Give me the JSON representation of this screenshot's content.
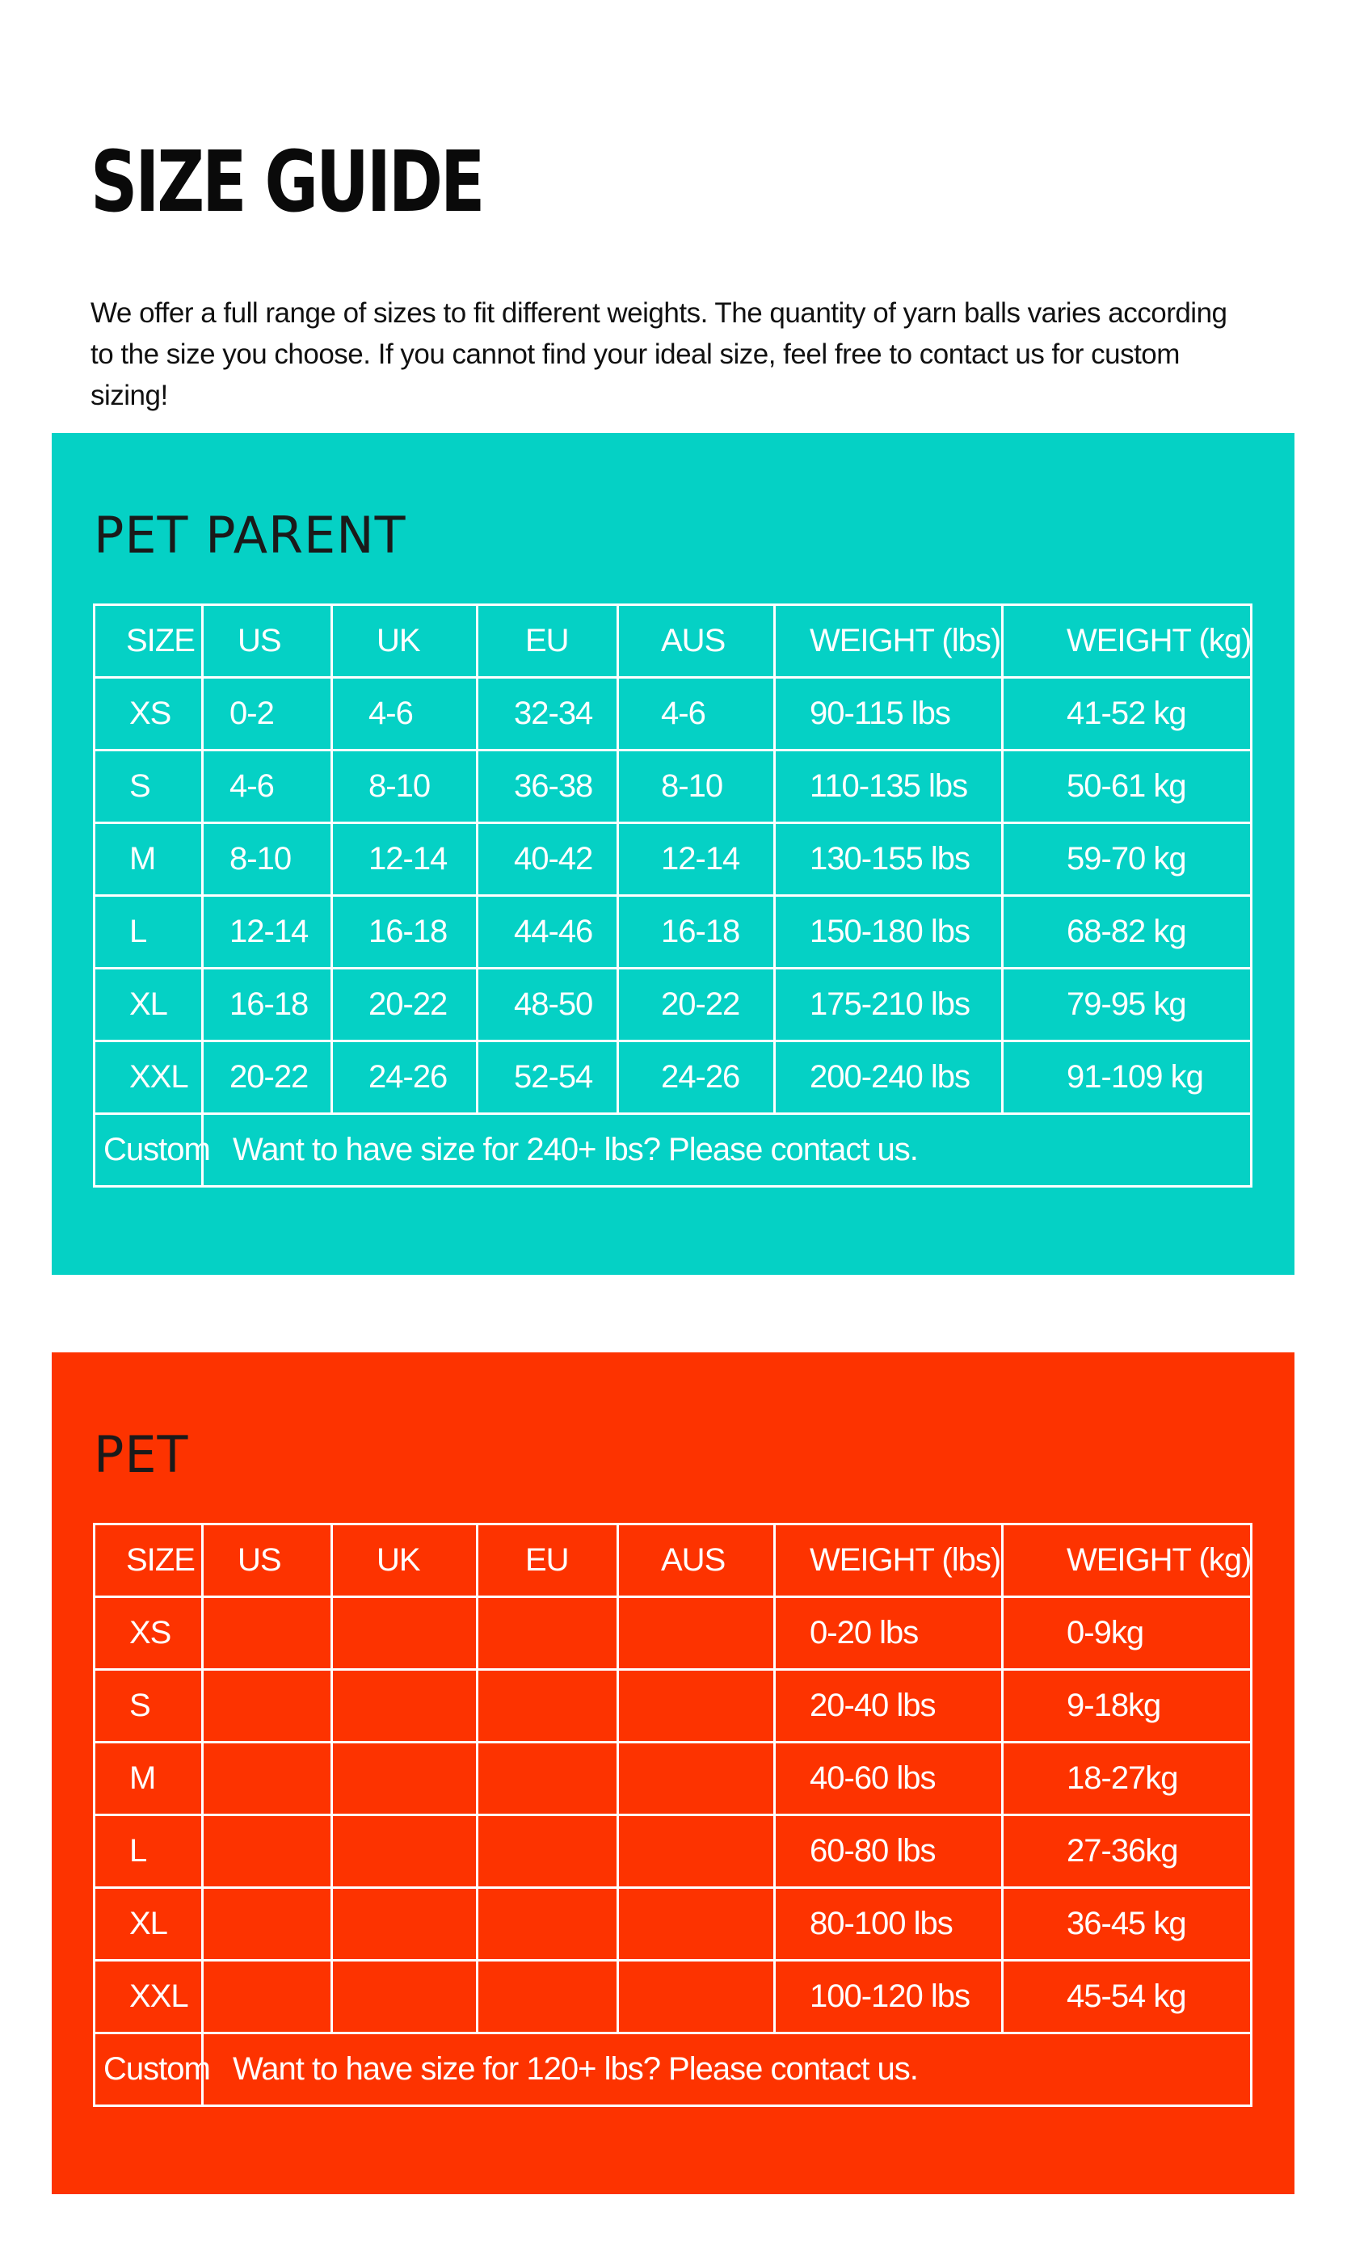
{
  "title": "SIZE GUIDE",
  "intro": "We offer a full range of sizes to fit different weights. The quantity of yarn balls varies according to the size you choose. If you cannot find your ideal size, feel free to contact us for custom sizing!",
  "colors": {
    "pet_parent_bg": "#05d1c5",
    "pet_bg": "#fd3300",
    "grid_lines": "#ffffff"
  },
  "tables": [
    {
      "title": "PET PARENT",
      "headers": [
        "SIZE",
        "US",
        "UK",
        "EU",
        "AUS",
        "WEIGHT (lbs)",
        "WEIGHT (kg)"
      ],
      "rows": [
        [
          "XS",
          "0-2",
          "4-6",
          "32-34",
          "4-6",
          "90-115 lbs",
          "41-52 kg"
        ],
        [
          "S",
          "4-6",
          "8-10",
          "36-38",
          "8-10",
          "110-135 lbs",
          "50-61 kg"
        ],
        [
          "M",
          "8-10",
          "12-14",
          "40-42",
          "12-14",
          "130-155 lbs",
          "59-70 kg"
        ],
        [
          "L",
          "12-14",
          "16-18",
          "44-46",
          "16-18",
          "150-180 lbs",
          "68-82 kg"
        ],
        [
          "XL",
          "16-18",
          "20-22",
          "48-50",
          "20-22",
          "175-210 lbs",
          "79-95 kg"
        ],
        [
          "XXL",
          "20-22",
          "24-26",
          "52-54",
          "24-26",
          "200-240 lbs",
          "91-109 kg"
        ]
      ],
      "custom": {
        "label": "Custom",
        "note": "Want to have size for 240+ lbs?  Please contact us."
      }
    },
    {
      "title": "PET",
      "headers": [
        "SIZE",
        "US",
        "UK",
        "EU",
        "AUS",
        "WEIGHT (lbs)",
        "WEIGHT (kg)"
      ],
      "rows": [
        [
          "XS",
          "",
          "",
          "",
          "",
          "0-20 lbs",
          "0-9kg"
        ],
        [
          "S",
          "",
          "",
          "",
          "",
          "20-40 lbs",
          "9-18kg"
        ],
        [
          "M",
          "",
          "",
          "",
          "",
          "40-60 lbs",
          "18-27kg"
        ],
        [
          "L",
          "",
          "",
          "",
          "",
          "60-80  lbs",
          "27-36kg"
        ],
        [
          "XL",
          "",
          "",
          "",
          "",
          "80-100 lbs",
          "36-45 kg"
        ],
        [
          "XXL",
          "",
          "",
          "",
          "",
          "100-120 lbs",
          "45-54 kg"
        ]
      ],
      "custom": {
        "label": "Custom",
        "note": "Want to have size for 120+ lbs?  Please contact us."
      }
    }
  ]
}
